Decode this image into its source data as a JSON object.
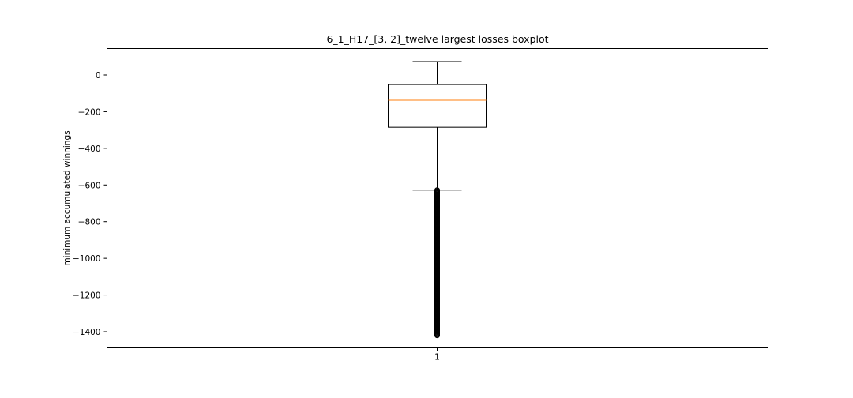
{
  "chart_data": {
    "type": "boxplot",
    "title": "6_1_H17_[3, 2]_twelve largest losses boxplot",
    "xlabel": "",
    "ylabel": "minimum accumulated winnings",
    "categories": [
      "1"
    ],
    "ylim": [
      -1490,
      150
    ],
    "yticks": [
      0,
      -200,
      -400,
      -600,
      -800,
      -1000,
      -1200,
      -1400
    ],
    "ytick_labels": [
      "0",
      "−200",
      "−400",
      "−600",
      "−800",
      "−1000",
      "−1200",
      "−1400"
    ],
    "xtick_labels": [
      "1"
    ],
    "grid": false,
    "colors": {
      "box": "#000000",
      "median": "#ff7f0e",
      "whisker": "#000000",
      "flier": "#000000"
    },
    "boxes": [
      {
        "category": "1",
        "whisker_high": 73,
        "q3": -52,
        "median": -138,
        "q1": -285,
        "whisker_low": -628,
        "outliers_range": [
          -1420,
          -628
        ]
      }
    ]
  }
}
